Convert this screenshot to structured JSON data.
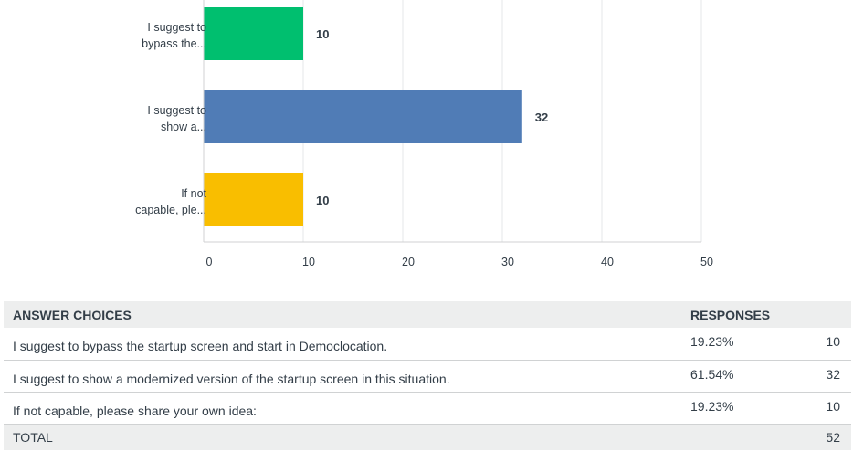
{
  "colors": {
    "bars": [
      "#00bf6f",
      "#507cb6",
      "#f9be00"
    ],
    "grid": "#e6e7e8",
    "text": "#333e48",
    "table_header_bg": "#edeeee"
  },
  "chart_data": {
    "type": "bar",
    "orientation": "horizontal",
    "categories": [
      [
        "I suggest to",
        "bypass the..."
      ],
      [
        "I suggest to",
        "show a..."
      ],
      [
        "If not",
        "capable, ple..."
      ]
    ],
    "values": [
      10,
      32,
      10
    ],
    "data_labels": [
      "10",
      "32",
      "10"
    ],
    "xlim": [
      0,
      50
    ],
    "xticks": [
      0,
      10,
      20,
      30,
      40,
      50
    ],
    "grid": true,
    "legend": "none",
    "title": "",
    "xlabel": "",
    "ylabel": ""
  },
  "table": {
    "header": {
      "choice": "ANSWER CHOICES",
      "responses": "RESPONSES"
    },
    "rows": [
      {
        "choice": "I suggest to bypass the startup screen and start in Democlocation.",
        "percent": "19.23%",
        "count": "10"
      },
      {
        "choice": "I suggest to show a modernized version of the startup screen in this situation.",
        "percent": "61.54%",
        "count": "32"
      },
      {
        "choice": "If not capable, please share your own idea:",
        "percent": "19.23%",
        "count": "10"
      }
    ],
    "total": {
      "label": "TOTAL",
      "count": "52"
    }
  }
}
